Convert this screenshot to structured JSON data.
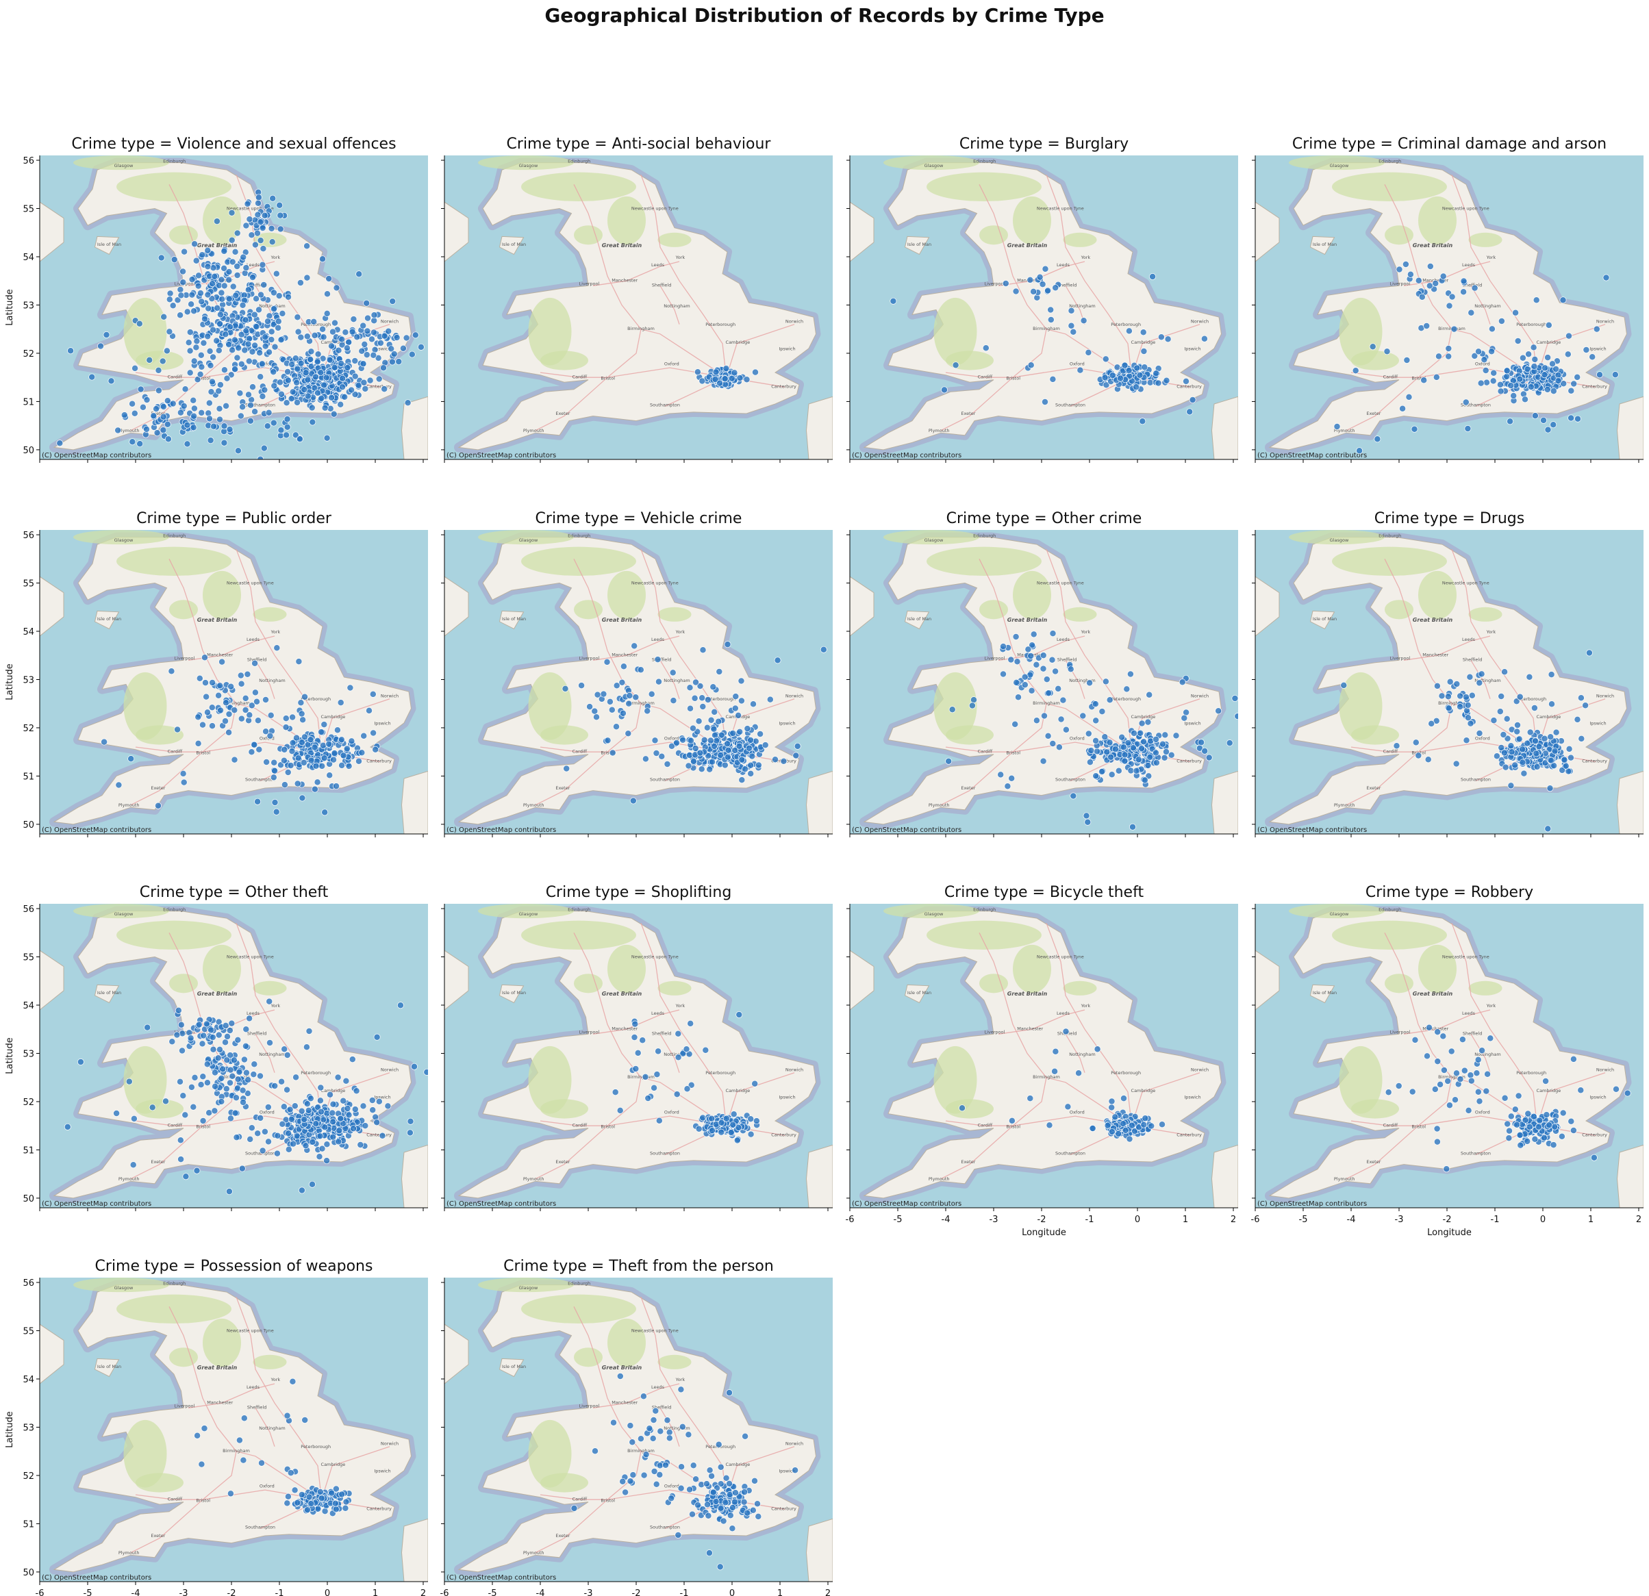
{
  "figure": {
    "title": "Geographical Distribution of Records by Crime Type",
    "attribution": "(C) OpenStreetMap contributors",
    "xlabel": "Longitude",
    "ylabel": "Latitude",
    "xlim": [
      -6.0,
      2.1
    ],
    "ylim": [
      49.8,
      56.1
    ],
    "xticks": [
      -6,
      -5,
      -4,
      -3,
      -2,
      -1,
      0,
      1,
      2
    ],
    "yticks": [
      50,
      51,
      52,
      53,
      54,
      55,
      56
    ],
    "colors": {
      "sea": "#aad3df",
      "land": "#f2efe9",
      "upland": "#cfe0a8",
      "road": "#e8a6a6",
      "point": "#2a75c0",
      "point_edge": "#ffffff"
    },
    "map_places": [
      "Glasgow",
      "Edinburgh",
      "Newcastle upon Tyne",
      "Isle of Man",
      "Great Britain",
      "Leeds",
      "York",
      "Liverpool",
      "Manchester",
      "Sheffield",
      "Nottingham",
      "Birmingham",
      "Peterborough",
      "Norwich",
      "Cambridge",
      "Oxford",
      "Cardiff",
      "Bristol",
      "London",
      "Southampton",
      "Plymouth",
      "Exeter",
      "Canterbury",
      "Ipswich"
    ]
  },
  "chart_data": [
    {
      "type": "scatter",
      "title": "Crime type = Violence and sexual offences",
      "xlabel": "",
      "ylabel": "Latitude",
      "xlim": [
        -6.0,
        2.1
      ],
      "ylim": [
        49.8,
        56.1
      ],
      "clusters": [
        {
          "x": -0.15,
          "y": 51.5,
          "sx": 0.4,
          "sy": 0.25,
          "n": 260
        },
        {
          "x": -1.9,
          "y": 52.55,
          "sx": 0.4,
          "sy": 0.3,
          "n": 120
        },
        {
          "x": -2.3,
          "y": 53.5,
          "sx": 0.4,
          "sy": 0.3,
          "n": 90
        },
        {
          "x": -1.4,
          "y": 54.8,
          "sx": 0.25,
          "sy": 0.3,
          "n": 40
        },
        {
          "x": -3.3,
          "y": 50.6,
          "sx": 0.7,
          "sy": 0.25,
          "n": 60
        },
        {
          "x": 0.8,
          "y": 52.2,
          "sx": 0.5,
          "sy": 0.3,
          "n": 70
        },
        {
          "x": -1.5,
          "y": 52.0,
          "sx": 1.3,
          "sy": 1.0,
          "n": 260
        }
      ]
    },
    {
      "type": "scatter",
      "title": "Crime type = Anti-social behaviour",
      "xlabel": "",
      "ylabel": "",
      "xlim": [
        -6.0,
        2.1
      ],
      "ylim": [
        49.8,
        56.1
      ],
      "clusters": [
        {
          "x": -0.15,
          "y": 51.5,
          "sx": 0.2,
          "sy": 0.08,
          "n": 120
        }
      ]
    },
    {
      "type": "scatter",
      "title": "Crime type = Burglary",
      "xlabel": "",
      "ylabel": "",
      "xlim": [
        -6.0,
        2.1
      ],
      "ylim": [
        49.8,
        56.1
      ],
      "clusters": [
        {
          "x": -0.15,
          "y": 51.5,
          "sx": 0.28,
          "sy": 0.12,
          "n": 110
        },
        {
          "x": -2.2,
          "y": 53.4,
          "sx": 0.35,
          "sy": 0.15,
          "n": 15
        },
        {
          "x": -1.0,
          "y": 52.0,
          "sx": 1.2,
          "sy": 0.8,
          "n": 30
        }
      ]
    },
    {
      "type": "scatter",
      "title": "Crime type = Criminal damage and arson",
      "xlabel": "",
      "ylabel": "",
      "xlim": [
        -6.0,
        2.1
      ],
      "ylim": [
        49.8,
        56.1
      ],
      "clusters": [
        {
          "x": -0.15,
          "y": 51.5,
          "sx": 0.35,
          "sy": 0.18,
          "n": 150
        },
        {
          "x": -2.2,
          "y": 53.4,
          "sx": 0.4,
          "sy": 0.2,
          "n": 20
        },
        {
          "x": -1.0,
          "y": 52.0,
          "sx": 1.4,
          "sy": 0.9,
          "n": 60
        }
      ]
    },
    {
      "type": "scatter",
      "title": "Crime type = Public order",
      "xlabel": "",
      "ylabel": "Latitude",
      "xlim": [
        -6.0,
        2.1
      ],
      "ylim": [
        49.8,
        56.1
      ],
      "clusters": [
        {
          "x": -0.15,
          "y": 51.5,
          "sx": 0.4,
          "sy": 0.2,
          "n": 150
        },
        {
          "x": -2.1,
          "y": 52.6,
          "sx": 0.3,
          "sy": 0.3,
          "n": 30
        },
        {
          "x": -1.2,
          "y": 52.0,
          "sx": 1.3,
          "sy": 0.9,
          "n": 80
        }
      ]
    },
    {
      "type": "scatter",
      "title": "Crime type = Vehicle crime",
      "xlabel": "",
      "ylabel": "",
      "xlim": [
        -6.0,
        2.1
      ],
      "ylim": [
        49.8,
        56.1
      ],
      "clusters": [
        {
          "x": -0.15,
          "y": 51.5,
          "sx": 0.45,
          "sy": 0.2,
          "n": 200
        },
        {
          "x": -2.2,
          "y": 52.6,
          "sx": 0.4,
          "sy": 0.4,
          "n": 30
        },
        {
          "x": -1.0,
          "y": 52.2,
          "sx": 1.2,
          "sy": 0.8,
          "n": 60
        }
      ]
    },
    {
      "type": "scatter",
      "title": "Crime type = Other crime",
      "xlabel": "",
      "ylabel": "",
      "xlim": [
        -6.0,
        2.1
      ],
      "ylim": [
        49.8,
        56.1
      ],
      "clusters": [
        {
          "x": -0.15,
          "y": 51.5,
          "sx": 0.4,
          "sy": 0.2,
          "n": 170
        },
        {
          "x": -2.2,
          "y": 53.4,
          "sx": 0.35,
          "sy": 0.3,
          "n": 30
        },
        {
          "x": -1.0,
          "y": 52.0,
          "sx": 1.4,
          "sy": 0.9,
          "n": 70
        }
      ]
    },
    {
      "type": "scatter",
      "title": "Crime type = Drugs",
      "xlabel": "",
      "ylabel": "",
      "xlim": [
        -6.0,
        2.1
      ],
      "ylim": [
        49.8,
        56.1
      ],
      "clusters": [
        {
          "x": -0.15,
          "y": 51.5,
          "sx": 0.35,
          "sy": 0.18,
          "n": 170
        },
        {
          "x": -1.9,
          "y": 52.6,
          "sx": 0.3,
          "sy": 0.3,
          "n": 20
        },
        {
          "x": -1.0,
          "y": 52.0,
          "sx": 1.2,
          "sy": 0.8,
          "n": 50
        }
      ]
    },
    {
      "type": "scatter",
      "title": "Crime type = Other theft",
      "xlabel": "",
      "ylabel": "Latitude",
      "xlim": [
        -6.0,
        2.1
      ],
      "ylim": [
        49.8,
        56.1
      ],
      "clusters": [
        {
          "x": -0.15,
          "y": 51.5,
          "sx": 0.45,
          "sy": 0.25,
          "n": 220
        },
        {
          "x": -2.1,
          "y": 52.6,
          "sx": 0.3,
          "sy": 0.3,
          "n": 60
        },
        {
          "x": -2.5,
          "y": 53.5,
          "sx": 0.4,
          "sy": 0.2,
          "n": 40
        },
        {
          "x": -1.3,
          "y": 52.0,
          "sx": 1.4,
          "sy": 0.9,
          "n": 120
        }
      ]
    },
    {
      "type": "scatter",
      "title": "Crime type = Shoplifting",
      "xlabel": "",
      "ylabel": "",
      "xlim": [
        -6.0,
        2.1
      ],
      "ylim": [
        49.8,
        56.1
      ],
      "clusters": [
        {
          "x": -0.15,
          "y": 51.5,
          "sx": 0.25,
          "sy": 0.1,
          "n": 140
        },
        {
          "x": -1.5,
          "y": 52.5,
          "sx": 0.9,
          "sy": 0.6,
          "n": 30
        }
      ]
    },
    {
      "type": "scatter",
      "title": "Crime type = Bicycle theft",
      "xlabel": "",
      "ylabel": "",
      "xlim": [
        -6.0,
        2.1
      ],
      "ylim": [
        49.8,
        56.1
      ],
      "clusters": [
        {
          "x": -0.15,
          "y": 51.5,
          "sx": 0.25,
          "sy": 0.1,
          "n": 120
        },
        {
          "x": -1.0,
          "y": 52.3,
          "sx": 1.0,
          "sy": 0.7,
          "n": 15
        }
      ]
    },
    {
      "type": "scatter",
      "title": "Crime type = Robbery",
      "xlabel": "",
      "ylabel": "",
      "xlim": [
        -6.0,
        2.1
      ],
      "ylim": [
        49.8,
        56.1
      ],
      "clusters": [
        {
          "x": -0.15,
          "y": 51.5,
          "sx": 0.25,
          "sy": 0.12,
          "n": 140
        },
        {
          "x": -1.8,
          "y": 52.6,
          "sx": 0.5,
          "sy": 0.5,
          "n": 25
        },
        {
          "x": -1.0,
          "y": 51.8,
          "sx": 1.0,
          "sy": 0.7,
          "n": 25
        }
      ]
    },
    {
      "type": "scatter",
      "title": "Crime type = Possession of weapons",
      "xlabel": "Longitude",
      "ylabel": "Latitude",
      "xlim": [
        -6.0,
        2.1
      ],
      "ylim": [
        49.8,
        56.1
      ],
      "clusters": [
        {
          "x": -0.15,
          "y": 51.5,
          "sx": 0.3,
          "sy": 0.12,
          "n": 110
        },
        {
          "x": -1.5,
          "y": 52.3,
          "sx": 0.9,
          "sy": 0.6,
          "n": 15
        }
      ]
    },
    {
      "type": "scatter",
      "title": "Crime type = Theft from the person",
      "xlabel": "Longitude",
      "ylabel": "",
      "xlim": [
        -6.0,
        2.1
      ],
      "ylim": [
        49.8,
        56.1
      ],
      "clusters": [
        {
          "x": -0.15,
          "y": 51.5,
          "sx": 0.3,
          "sy": 0.2,
          "n": 110
        },
        {
          "x": -1.8,
          "y": 52.6,
          "sx": 0.6,
          "sy": 0.6,
          "n": 30
        },
        {
          "x": -1.0,
          "y": 51.8,
          "sx": 1.0,
          "sy": 0.8,
          "n": 30
        }
      ]
    }
  ]
}
